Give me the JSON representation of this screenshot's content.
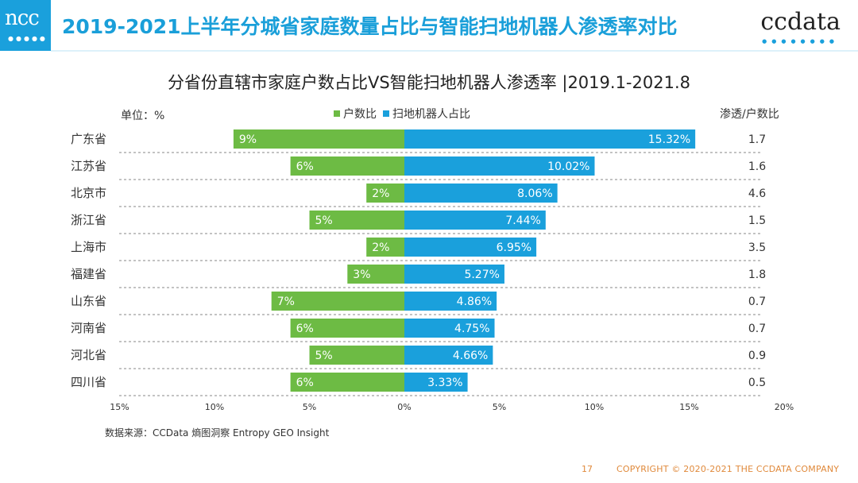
{
  "header": {
    "logo_left": "ncc",
    "logo_right": "ccdata",
    "title": "2019-2021上半年分城省家庭数量占比与智能扫地机器人渗透率对比",
    "accent_color": "#1aa0dc"
  },
  "chart_data": {
    "type": "bar",
    "orientation": "horizontal-diverging",
    "title": "分省份直辖市家庭户数占比VS智能扫地机器人渗透率 |2019.1-2021.8",
    "unit_label": "单位：%",
    "ratio_header": "渗透/户数比",
    "categories": [
      "广东省",
      "江苏省",
      "北京市",
      "浙江省",
      "上海市",
      "福建省",
      "山东省",
      "河南省",
      "河北省",
      "四川省"
    ],
    "series": [
      {
        "name": "户数比",
        "color": "#6dbb44",
        "direction": "left",
        "values": [
          9,
          6,
          2,
          5,
          2,
          3,
          7,
          6,
          5,
          6
        ],
        "labels": [
          "9%",
          "6%",
          "2%",
          "5%",
          "2%",
          "3%",
          "7%",
          "6%",
          "5%",
          "6%"
        ]
      },
      {
        "name": "扫地机器人占比",
        "color": "#1aa0dc",
        "direction": "right",
        "values": [
          15.32,
          10.02,
          8.06,
          7.44,
          6.95,
          5.27,
          4.86,
          4.75,
          4.66,
          3.33
        ],
        "labels": [
          "15.32%",
          "10.02%",
          "8.06%",
          "7.44%",
          "6.95%",
          "5.27%",
          "4.86%",
          "4.75%",
          "4.66%",
          "3.33%"
        ]
      }
    ],
    "ratios": [
      "1.7",
      "1.6",
      "4.6",
      "1.5",
      "3.5",
      "1.8",
      "0.7",
      "0.7",
      "0.9",
      "0.5"
    ],
    "xlim": [
      -15,
      20
    ],
    "x_ticks": [
      -15,
      -10,
      -5,
      0,
      5,
      10,
      15,
      20
    ],
    "x_tick_labels": [
      "15%",
      "10%",
      "5%",
      "0%",
      "5%",
      "10%",
      "15%",
      "20%"
    ]
  },
  "source": "数据来源：CCData 熵图洞察 Entropy GEO Insight",
  "footer": {
    "page": "17",
    "copyright": "COPYRIGHT © 2020-2021 THE CCDATA COMPANY"
  }
}
